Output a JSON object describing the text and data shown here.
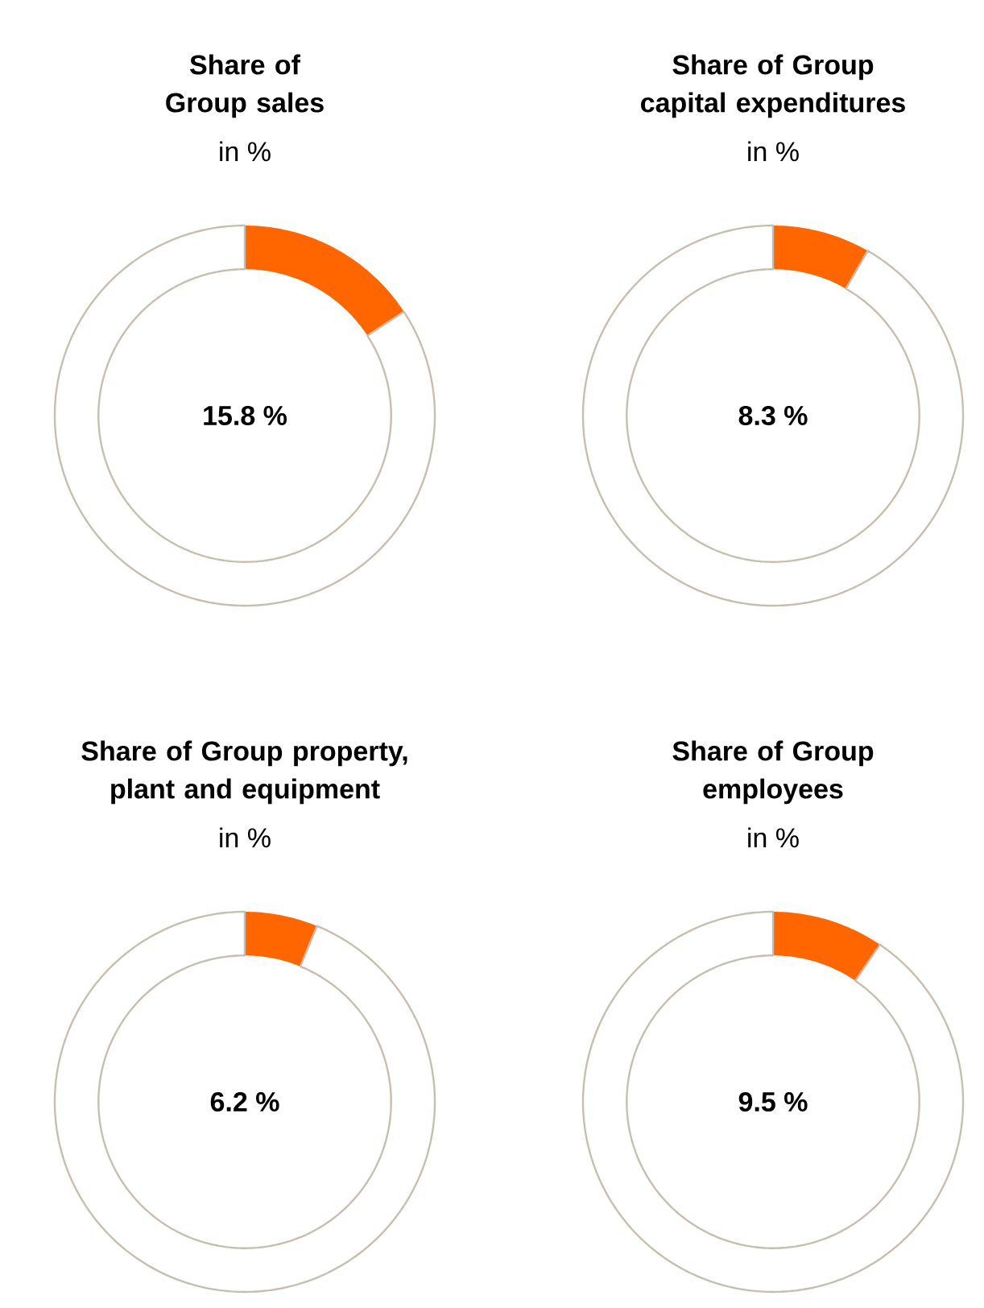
{
  "chart_data": [
    {
      "type": "donut",
      "title": "Share of Group sales",
      "subtitle": "in %",
      "categories": [
        null,
        null
      ],
      "values": [
        15.8,
        84.2
      ],
      "colors": [
        "#ff6600",
        "#ffffff"
      ],
      "annotations": [
        "15.8 %"
      ]
    },
    {
      "type": "donut",
      "title": "Share of Group capital expenditures",
      "subtitle": "in %",
      "categories": [
        null,
        null
      ],
      "values": [
        8.3,
        91.7
      ],
      "colors": [
        "#ff6600",
        "#ffffff"
      ],
      "annotations": [
        "8.3 %"
      ]
    },
    {
      "type": "donut",
      "title": "Share of Group property, plant and equipment",
      "subtitle": "in %",
      "categories": [
        null,
        null
      ],
      "values": [
        6.2,
        93.8
      ],
      "colors": [
        "#ff6600",
        "#ffffff"
      ],
      "annotations": [
        "6.2 %"
      ]
    },
    {
      "type": "donut",
      "title": "Share of Group employees",
      "subtitle": "in %",
      "categories": [
        null,
        null
      ],
      "values": [
        9.5,
        90.5
      ],
      "colors": [
        "#ff6600",
        "#ffffff"
      ],
      "annotations": [
        "9.5 %"
      ]
    }
  ]
}
